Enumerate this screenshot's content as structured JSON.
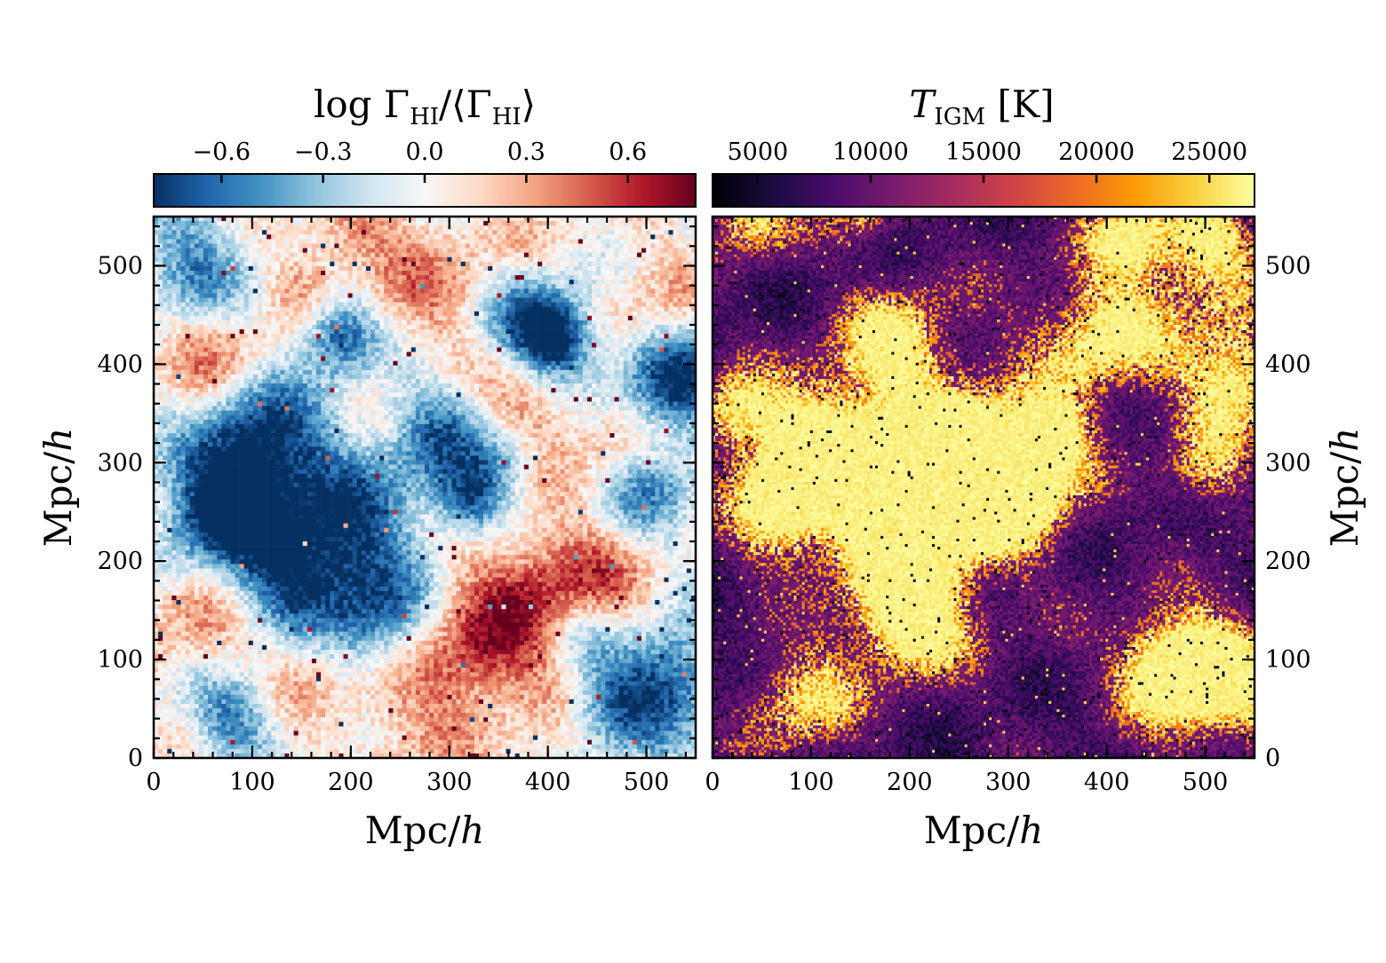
{
  "chart_data": [
    {
      "type": "heatmap",
      "panel": "left",
      "title": "log Γ_HI/⟨Γ_HI⟩",
      "colorbar": {
        "label_main": "log Γ",
        "label_sub": "HI",
        "label_mid": "/⟨Γ",
        "label_sub2": "HI",
        "label_end": "⟩",
        "range": [
          -0.8,
          0.8
        ],
        "ticks": [
          -0.6,
          -0.3,
          0.0,
          0.3,
          0.6
        ],
        "tick_labels": [
          "−0.6",
          "−0.3",
          "0.0",
          "0.3",
          "0.6"
        ],
        "cmap": "RdBu_r",
        "stops": [
          "#053061",
          "#2166ac",
          "#4393c3",
          "#92c5de",
          "#d1e5f0",
          "#f7f7f7",
          "#fddbc7",
          "#f4a582",
          "#d6604d",
          "#b2182b",
          "#67001f"
        ]
      },
      "xlabel": "Mpc/",
      "xlabel_italic": "h",
      "ylabel": "Mpc/",
      "ylabel_italic": "h",
      "xlim": [
        0,
        550
      ],
      "ylim": [
        0,
        550
      ],
      "xticks": [
        0,
        100,
        200,
        300,
        400,
        500
      ],
      "yticks": [
        0,
        100,
        200,
        300,
        400,
        500
      ],
      "tick_labels": [
        "0",
        "100",
        "200",
        "300",
        "400",
        "500"
      ],
      "ylabel_side": "left",
      "grid": false,
      "pixel_count": 120,
      "features": [
        {
          "x": 110,
          "y": 320,
          "r": 45,
          "v": -1.0
        },
        {
          "x": 65,
          "y": 250,
          "r": 40,
          "v": -1.0
        },
        {
          "x": 185,
          "y": 220,
          "r": 55,
          "v": -1.0
        },
        {
          "x": 190,
          "y": 430,
          "r": 28,
          "v": -0.9
        },
        {
          "x": 410,
          "y": 425,
          "r": 28,
          "v": -0.9
        },
        {
          "x": 380,
          "y": 445,
          "r": 35,
          "v": -0.7
        },
        {
          "x": 530,
          "y": 380,
          "r": 40,
          "v": -0.9
        },
        {
          "x": 520,
          "y": 80,
          "r": 40,
          "v": -0.9
        },
        {
          "x": 80,
          "y": 40,
          "r": 30,
          "v": -0.6
        },
        {
          "x": 290,
          "y": 330,
          "r": 40,
          "v": -0.7
        },
        {
          "x": 320,
          "y": 260,
          "r": 25,
          "v": -0.8
        },
        {
          "x": 460,
          "y": 50,
          "r": 30,
          "v": -0.6
        },
        {
          "x": 40,
          "y": 500,
          "r": 40,
          "v": -0.6
        },
        {
          "x": 130,
          "y": 170,
          "r": 35,
          "v": -0.5
        },
        {
          "x": 230,
          "y": 140,
          "r": 40,
          "v": -0.6
        },
        {
          "x": 500,
          "y": 270,
          "r": 35,
          "v": -0.5
        },
        {
          "x": 430,
          "y": 130,
          "r": 30,
          "v": -0.6
        },
        {
          "x": 360,
          "y": 300,
          "r": 25,
          "v": -0.4
        },
        {
          "x": 370,
          "y": 140,
          "r": 70,
          "v": 0.5
        },
        {
          "x": 320,
          "y": 100,
          "r": 45,
          "v": 0.4
        },
        {
          "x": 430,
          "y": 170,
          "r": 45,
          "v": 0.5
        },
        {
          "x": 280,
          "y": 480,
          "r": 70,
          "v": 0.35
        },
        {
          "x": 60,
          "y": 410,
          "r": 40,
          "v": 0.4
        },
        {
          "x": 380,
          "y": 350,
          "r": 40,
          "v": 0.4
        },
        {
          "x": 160,
          "y": 100,
          "r": 40,
          "v": 0.3
        },
        {
          "x": 40,
          "y": 140,
          "r": 40,
          "v": 0.35
        },
        {
          "x": 510,
          "y": 470,
          "r": 40,
          "v": 0.3
        },
        {
          "x": 200,
          "y": 530,
          "r": 30,
          "v": 0.3
        },
        {
          "x": 470,
          "y": 320,
          "r": 30,
          "v": 0.3
        },
        {
          "x": 250,
          "y": 30,
          "r": 40,
          "v": 0.3
        },
        {
          "x": 150,
          "y": 480,
          "r": 25,
          "v": 0.3
        }
      ]
    },
    {
      "type": "heatmap",
      "panel": "right",
      "title": "T_IGM [K]",
      "colorbar": {
        "label_main": "T",
        "label_sub": "IGM",
        "label_end": " [K]",
        "range": [
          3000,
          27000
        ],
        "ticks": [
          5000,
          10000,
          15000,
          20000,
          25000
        ],
        "tick_labels": [
          "5000",
          "10000",
          "15000",
          "20000",
          "25000"
        ],
        "cmap": "inferno",
        "stops": [
          "#000004",
          "#1b0c41",
          "#4a0c6b",
          "#781c6d",
          "#a52c60",
          "#cf4446",
          "#ed6925",
          "#fb9b06",
          "#f7d13d",
          "#fcffa4"
        ]
      },
      "xlabel": "Mpc/",
      "xlabel_italic": "h",
      "ylabel": "Mpc/",
      "ylabel_italic": "h",
      "xlim": [
        0,
        550
      ],
      "ylim": [
        0,
        550
      ],
      "xticks": [
        0,
        100,
        200,
        300,
        400,
        500
      ],
      "yticks": [
        0,
        100,
        200,
        300,
        400,
        500
      ],
      "tick_labels": [
        "0",
        "100",
        "200",
        "300",
        "400",
        "500"
      ],
      "ylabel_side": "right",
      "grid": false,
      "pixel_count": 200,
      "features": [
        {
          "x": 110,
          "y": 320,
          "r": 50,
          "v": 1.0
        },
        {
          "x": 65,
          "y": 250,
          "r": 35,
          "v": 0.8
        },
        {
          "x": 195,
          "y": 240,
          "r": 60,
          "v": 1.0
        },
        {
          "x": 270,
          "y": 300,
          "r": 55,
          "v": 1.0
        },
        {
          "x": 200,
          "y": 140,
          "r": 40,
          "v": 0.95
        },
        {
          "x": 185,
          "y": 420,
          "r": 40,
          "v": 0.8
        },
        {
          "x": 395,
          "y": 430,
          "r": 45,
          "v": 0.85
        },
        {
          "x": 530,
          "y": 390,
          "r": 45,
          "v": 0.9
        },
        {
          "x": 500,
          "y": 520,
          "r": 40,
          "v": 0.85
        },
        {
          "x": 520,
          "y": 80,
          "r": 50,
          "v": 0.95
        },
        {
          "x": 460,
          "y": 90,
          "r": 35,
          "v": 0.9
        },
        {
          "x": 90,
          "y": 60,
          "r": 40,
          "v": 0.7
        },
        {
          "x": 20,
          "y": 350,
          "r": 30,
          "v": 0.7
        },
        {
          "x": 40,
          "y": 550,
          "r": 30,
          "v": 0.75
        },
        {
          "x": 310,
          "y": 280,
          "r": 40,
          "v": 0.85
        },
        {
          "x": 150,
          "y": 560,
          "r": 25,
          "v": 0.6
        },
        {
          "x": 500,
          "y": 290,
          "r": 30,
          "v": 0.55
        },
        {
          "x": 420,
          "y": 530,
          "r": 30,
          "v": 0.7
        },
        {
          "x": 350,
          "y": 330,
          "r": 25,
          "v": 0.6
        },
        {
          "x": 290,
          "y": 110,
          "r": 60,
          "v": 0.05
        },
        {
          "x": 380,
          "y": 160,
          "r": 70,
          "v": 0.05
        },
        {
          "x": 280,
          "y": 470,
          "r": 70,
          "v": 0.08
        }
      ]
    }
  ]
}
